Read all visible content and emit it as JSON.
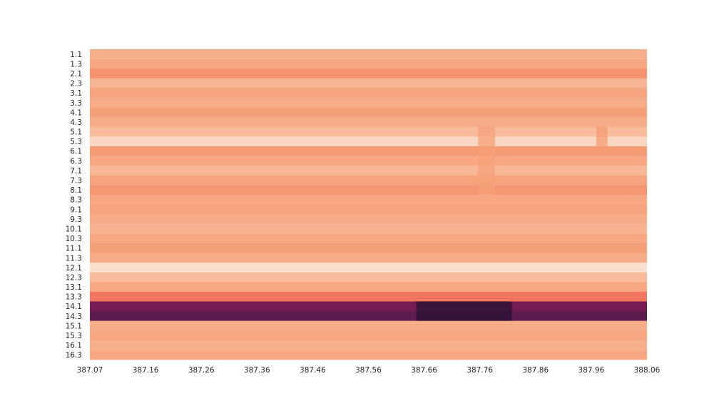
{
  "chart_data": {
    "type": "heatmap",
    "title": "",
    "xlabel": "",
    "ylabel": "",
    "grid": false,
    "legend": "none",
    "colormap": "rocket",
    "colormap_stops": [
      "#03051a",
      "#4c1d4b",
      "#a11a5b",
      "#e83f3f",
      "#f69c73",
      "#faebdd"
    ],
    "x_tick_labels": [
      "387.07",
      "387.16",
      "387.26",
      "387.36",
      "387.46",
      "387.56",
      "387.66",
      "387.76",
      "387.86",
      "387.96",
      "388.06"
    ],
    "y_tick_labels": [
      "1.1",
      "1.3",
      "2.1",
      "2.3",
      "3.1",
      "3.3",
      "4.1",
      "4.3",
      "5.1",
      "5.3",
      "6.1",
      "6.3",
      "7.1",
      "7.3",
      "8.1",
      "8.3",
      "9.1",
      "9.3",
      "10.1",
      "10.3",
      "11.1",
      "11.3",
      "12.1",
      "12.3",
      "13.1",
      "13.3",
      "14.1",
      "14.3",
      "15.1",
      "15.3",
      "16.1",
      "16.3"
    ],
    "x_range": [
      387.07,
      388.06
    ],
    "row_values": [
      0.85,
      0.83,
      0.78,
      0.86,
      0.82,
      0.84,
      0.81,
      0.84,
      0.88,
      0.95,
      0.8,
      0.83,
      0.87,
      0.82,
      0.79,
      0.83,
      0.82,
      0.84,
      0.86,
      0.83,
      0.81,
      0.84,
      0.97,
      0.88,
      0.83,
      0.72,
      0.3,
      0.24,
      0.84,
      0.83,
      0.85,
      0.83
    ],
    "anomalies": [
      {
        "row_from": "5.1",
        "row_to": "8.1",
        "x_from": 387.76,
        "x_to": 387.79,
        "delta": -0.07
      },
      {
        "row_from": "5.1",
        "row_to": "5.3",
        "x_from": 387.97,
        "x_to": 387.99,
        "delta": -0.08
      },
      {
        "row_from": "14.1",
        "row_to": "14.3",
        "x_from": 387.65,
        "x_to": 387.82,
        "delta": -0.2
      }
    ]
  }
}
